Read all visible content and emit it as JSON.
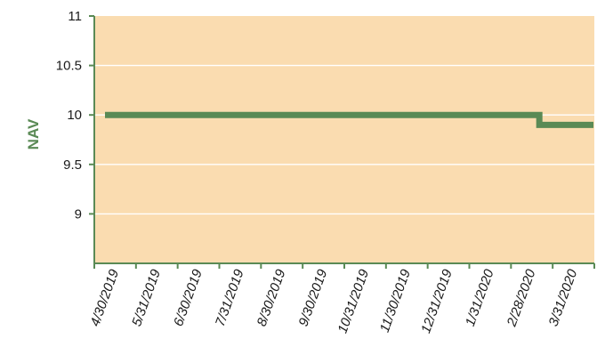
{
  "chart_data": {
    "type": "line",
    "xlabel": "",
    "ylabel": "NAV",
    "ylim": [
      8.5,
      11
    ],
    "yticks": [
      "11",
      "10.5",
      "10",
      "9.5",
      "9"
    ],
    "ytick_values": [
      11,
      10.5,
      10,
      9.5,
      9
    ],
    "categories": [
      "4/30/2019",
      "5/31/2019",
      "6/30/2019",
      "7/31/2019",
      "8/30/2019",
      "9/30/2019",
      "10/31/2019",
      "11/30/2019",
      "12/31/2019",
      "1/31/2020",
      "2/28/2020",
      "3/31/2020"
    ],
    "series": [
      {
        "values": [
          10.0,
          10.0,
          10.0,
          10.0,
          10.0,
          10.0,
          10.0,
          10.0,
          10.0,
          10.0,
          10.0,
          9.9
        ]
      }
    ],
    "step": true,
    "grid": true,
    "colors": {
      "plot_background": "#fadcb0",
      "line": "#5a8a55",
      "axis": "#5a8a55",
      "grid": "#ffffff",
      "ylabel": "#5a8a55"
    }
  }
}
